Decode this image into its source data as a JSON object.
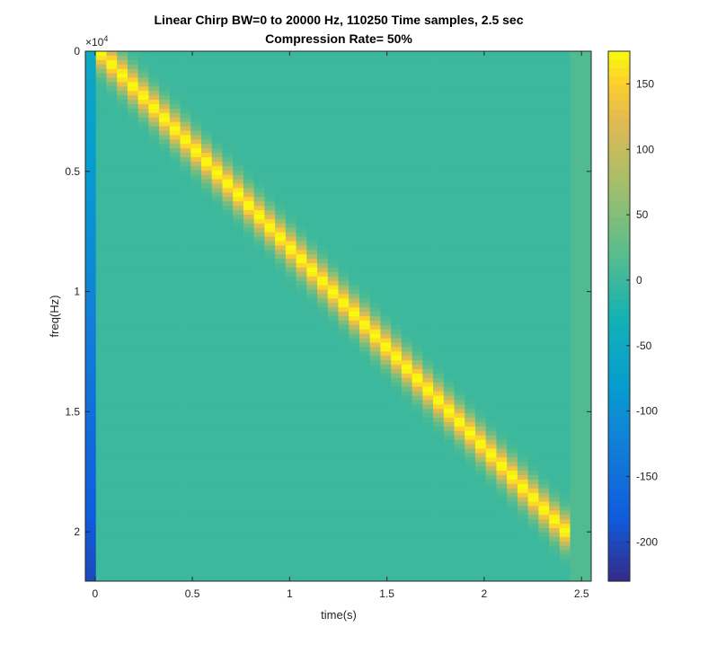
{
  "chart_data": {
    "type": "heatmap",
    "title": "Linear Chirp BW=0 to 20000 Hz, 110250 Time samples, 2.5 sec",
    "subtitle": "Compression Rate= 50%",
    "xlabel": "time(s)",
    "ylabel": "freq(Hz)",
    "xlim": [
      -0.05,
      2.55
    ],
    "ylim": [
      0,
      22050
    ],
    "y_reversed": true,
    "y_multiplier": "×10",
    "y_multiplier_exp": "4",
    "x_ticks": [
      0,
      0.5,
      1,
      1.5,
      2,
      2.5
    ],
    "x_tick_labels": [
      "0",
      "0.5",
      "1",
      "1.5",
      "2",
      "2.5"
    ],
    "y_ticks": [
      0,
      5000,
      10000,
      15000,
      20000
    ],
    "y_tick_labels": [
      "0",
      "0.5",
      "1",
      "1.5",
      "2"
    ],
    "colorbar": {
      "range": [
        -230,
        175
      ],
      "ticks": [
        150,
        100,
        50,
        0,
        -50,
        -100,
        -150,
        -200
      ],
      "tick_labels": [
        "150",
        "100",
        "50",
        "0",
        "-50",
        "-100",
        "-150",
        "-200"
      ],
      "colormap": "parula"
    },
    "chirp": {
      "t_start": 0.02,
      "t_end": 2.42,
      "f_start": 0,
      "f_end": 20000,
      "peak_value": 175
    },
    "time_frames": 48,
    "freq_bins": 120
  }
}
